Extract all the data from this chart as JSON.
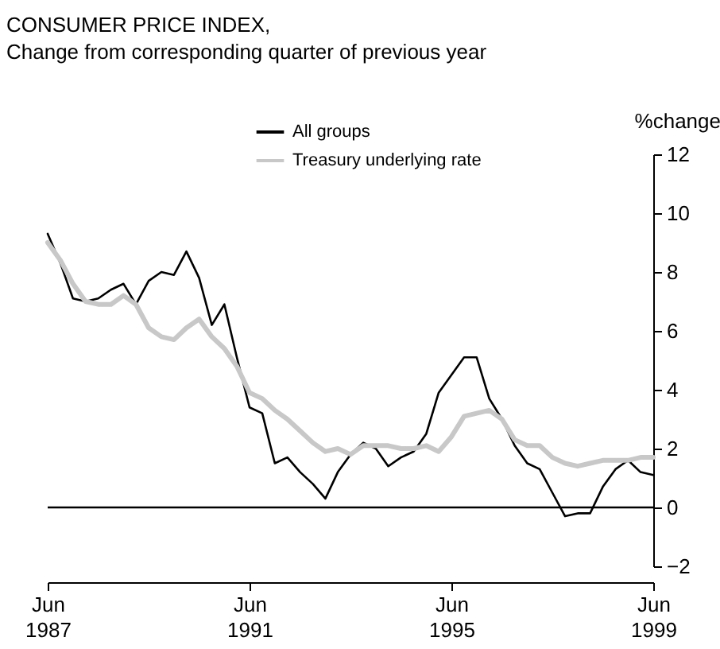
{
  "chart_data": {
    "type": "line",
    "title": "CONSUMER PRICE INDEX,",
    "subtitle": "Change from corresponding quarter of previous year",
    "ylabel": "%change",
    "x": [
      "1987-06",
      "1987-09",
      "1987-12",
      "1988-03",
      "1988-06",
      "1988-09",
      "1988-12",
      "1989-03",
      "1989-06",
      "1989-09",
      "1989-12",
      "1990-03",
      "1990-06",
      "1990-09",
      "1990-12",
      "1991-03",
      "1991-06",
      "1991-09",
      "1991-12",
      "1992-03",
      "1992-06",
      "1992-09",
      "1992-12",
      "1993-03",
      "1993-06",
      "1993-09",
      "1993-12",
      "1994-03",
      "1994-06",
      "1994-09",
      "1994-12",
      "1995-03",
      "1995-06",
      "1995-09",
      "1995-12",
      "1996-03",
      "1996-06",
      "1996-09",
      "1996-12",
      "1997-03",
      "1997-06",
      "1997-09",
      "1997-12",
      "1998-03",
      "1998-06",
      "1998-09",
      "1998-12",
      "1999-03",
      "1999-06"
    ],
    "series": [
      {
        "name": "All groups",
        "color": "#000000",
        "values": [
          9.3,
          8.3,
          7.1,
          7.0,
          7.1,
          7.4,
          7.6,
          6.9,
          7.7,
          8.0,
          7.9,
          8.7,
          7.8,
          6.2,
          6.9,
          5.1,
          3.4,
          3.2,
          1.5,
          1.7,
          1.2,
          0.8,
          0.3,
          1.2,
          1.8,
          2.2,
          2.0,
          1.4,
          1.7,
          1.9,
          2.5,
          3.9,
          4.5,
          5.1,
          5.1,
          3.7,
          3.0,
          2.1,
          1.5,
          1.3,
          0.5,
          -0.3,
          -0.2,
          -0.2,
          0.7,
          1.3,
          1.6,
          1.2,
          1.1
        ]
      },
      {
        "name": "Treasury underlying rate",
        "color": "#c8c8c8",
        "values": [
          9.0,
          8.4,
          7.6,
          7.0,
          6.9,
          6.9,
          7.2,
          6.9,
          6.1,
          5.8,
          5.7,
          6.1,
          6.4,
          5.8,
          5.4,
          4.8,
          3.9,
          3.7,
          3.3,
          3.0,
          2.6,
          2.2,
          1.9,
          2.0,
          1.8,
          2.1,
          2.1,
          2.1,
          2.0,
          2.0,
          2.1,
          1.9,
          2.4,
          3.1,
          3.2,
          3.3,
          3.0,
          2.3,
          2.1,
          2.1,
          1.7,
          1.5,
          1.4,
          1.5,
          1.6,
          1.6,
          1.6,
          1.7,
          1.7
        ]
      }
    ],
    "xlim": [
      "1987-06",
      "1999-06"
    ],
    "xticks": [
      {
        "value": "1987-06",
        "label": "Jun 1987"
      },
      {
        "value": "1991-06",
        "label": "Jun 1991"
      },
      {
        "value": "1995-06",
        "label": "Jun 1995"
      },
      {
        "value": "1999-06",
        "label": "Jun 1999"
      }
    ],
    "ylim": [
      -2,
      12
    ],
    "yticks": [
      -2,
      0,
      2,
      4,
      6,
      8,
      10,
      12
    ],
    "ref_lines": [
      {
        "axis": "y",
        "value": 0,
        "color": "#000000"
      }
    ],
    "grid": false,
    "legend": "top"
  }
}
